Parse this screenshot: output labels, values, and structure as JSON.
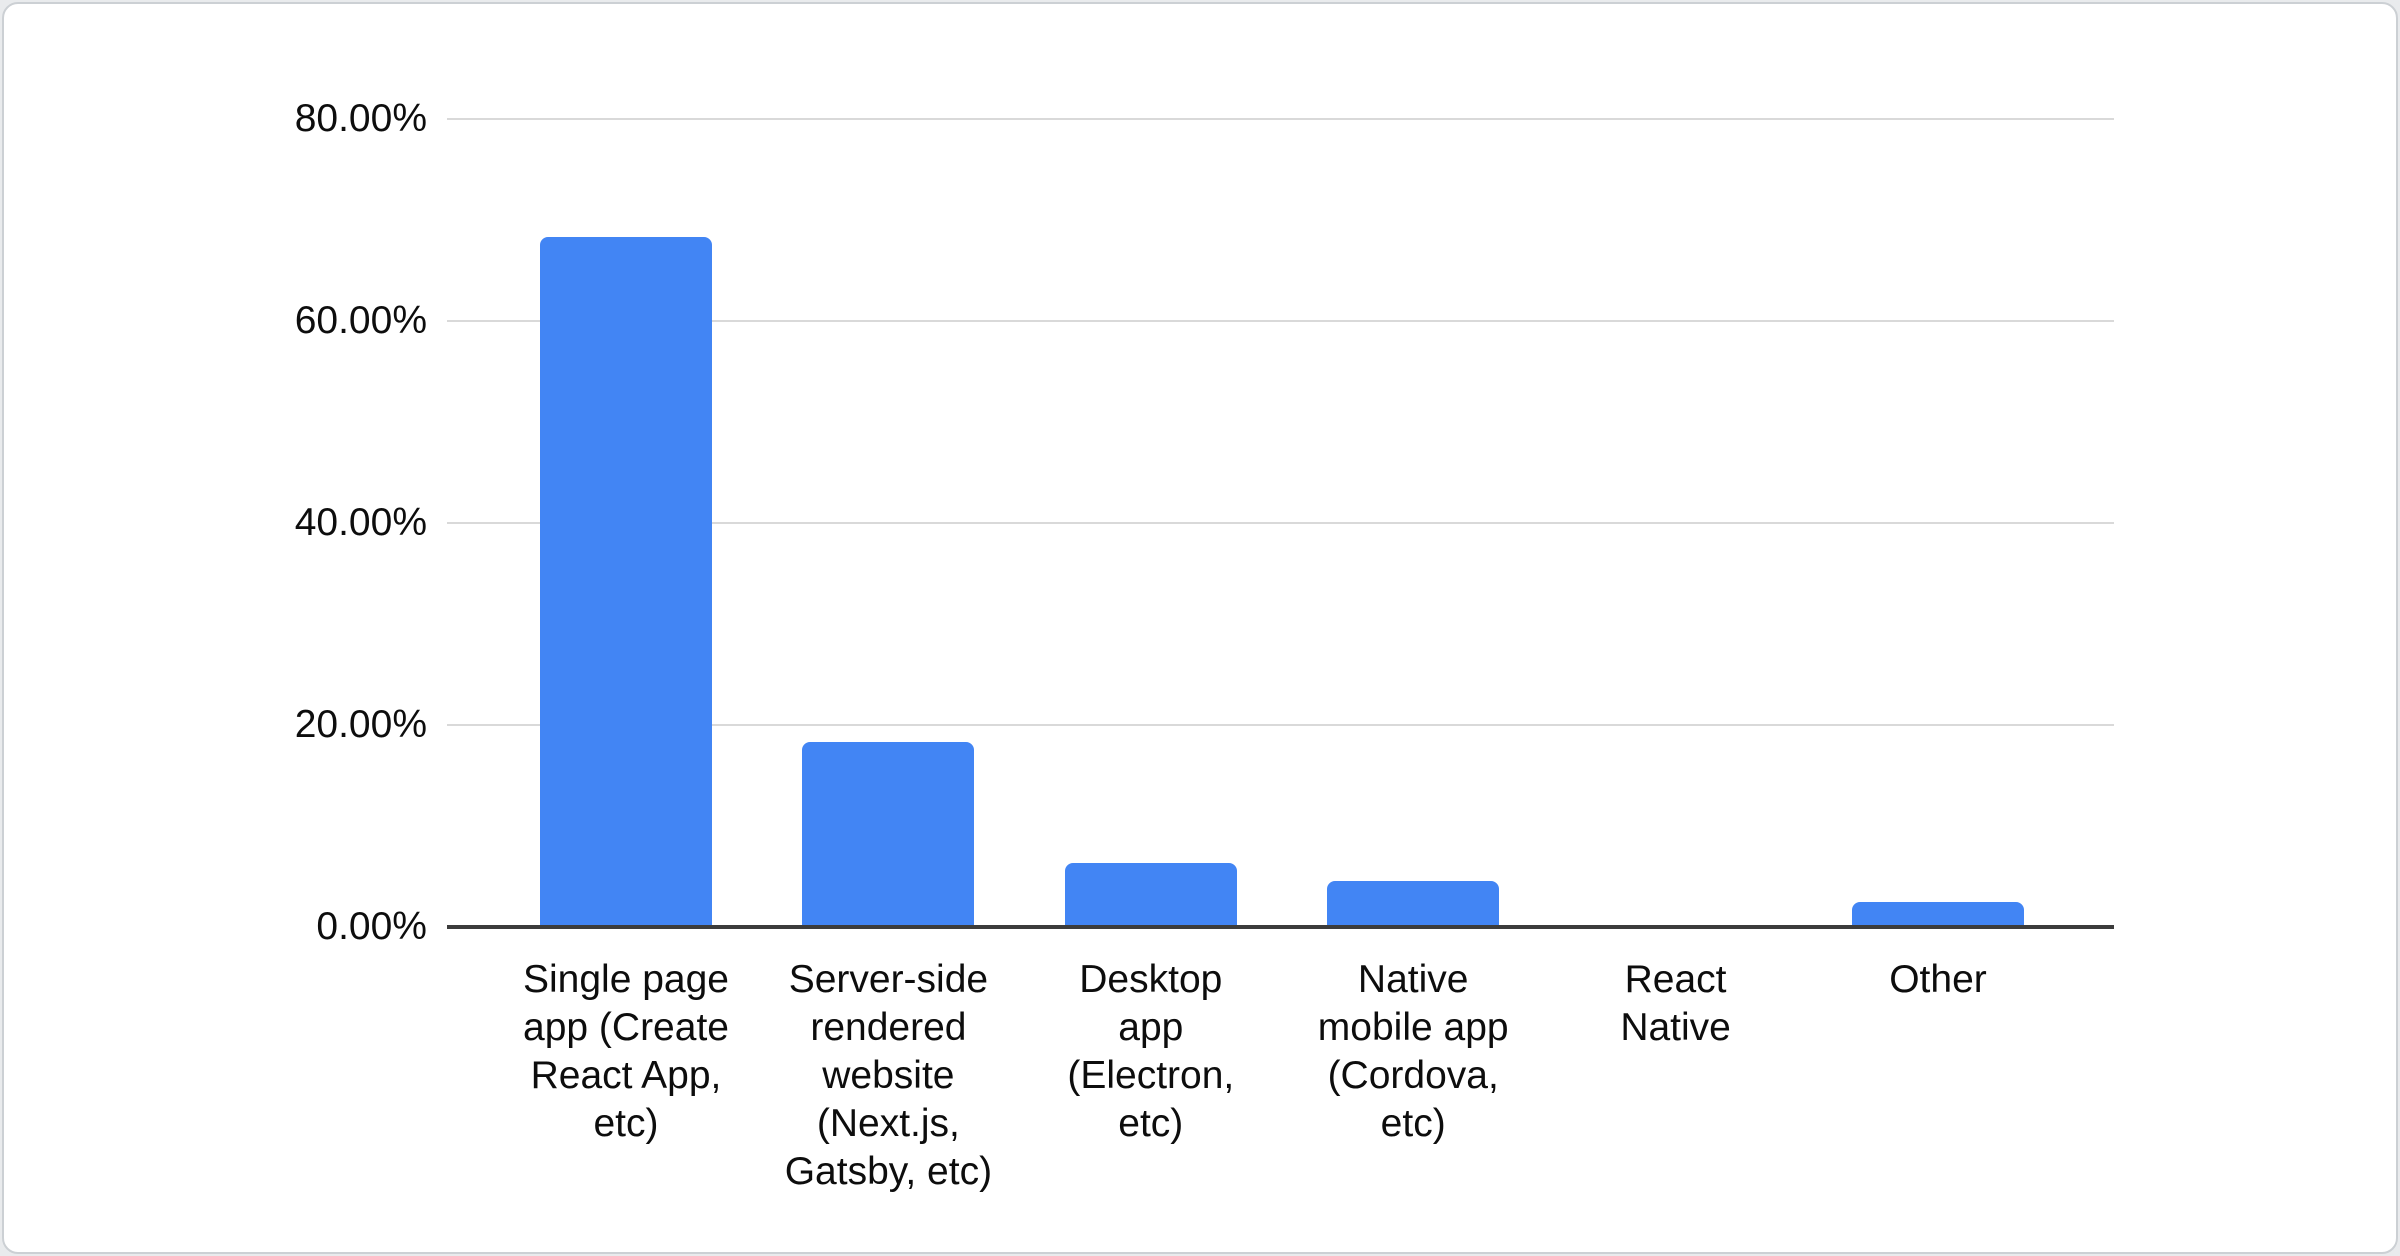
{
  "chart_data": {
    "type": "bar",
    "title": "",
    "xlabel": "",
    "ylabel": "",
    "categories": [
      "Single page app (Create React App, etc)",
      "Server-side rendered website (Next.js, Gatsby, etc)",
      "Desktop app (Electron, etc)",
      "Native mobile app (Cordova, etc)",
      "React Native",
      "Other"
    ],
    "category_lines": [
      [
        "Single page",
        "app (Create",
        "React App,",
        "etc)"
      ],
      [
        "Server-side",
        "rendered",
        "website",
        "(Next.js,",
        "Gatsby, etc)"
      ],
      [
        "Desktop",
        "app",
        "(Electron,",
        "etc)"
      ],
      [
        "Native",
        "mobile app",
        "(Cordova,",
        "etc)"
      ],
      [
        "React",
        "Native"
      ],
      [
        "Other"
      ]
    ],
    "values": [
      68.3,
      18.3,
      6.3,
      4.6,
      0,
      2.5
    ],
    "unit": "%",
    "y_ticks": [
      "80.00%",
      "60.00%",
      "40.00%",
      "20.00%",
      "0.00%"
    ],
    "ylim": [
      0,
      80
    ],
    "ytick_step": 20,
    "grid": true,
    "legend": "none",
    "bar_color": "#4285f4",
    "gridline_color": "#d9d9d9",
    "axis_color": "#3c3c3c",
    "label_color": "#0d0d0d",
    "card_background": "#ffffff",
    "card_border_color": "#ccd0d4"
  }
}
